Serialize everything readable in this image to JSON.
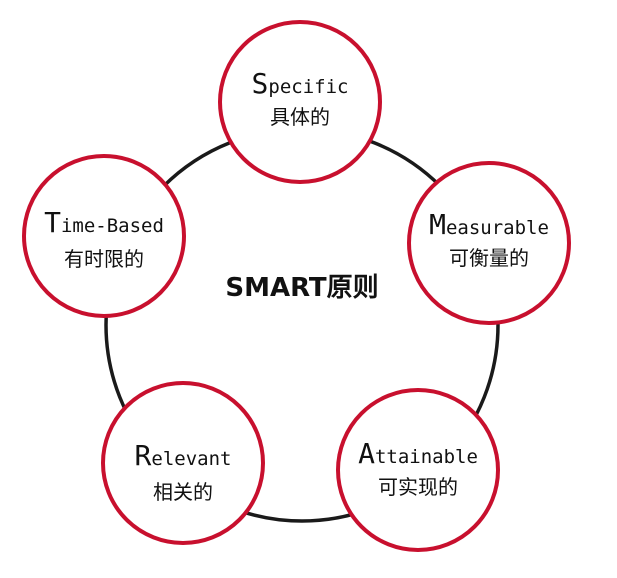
{
  "title": "SMART原则",
  "colors": {
    "ring": "#1a1a1a",
    "node_border": "#c8102e",
    "node_fill": "#ffffff",
    "text": "#111111"
  },
  "nodes": [
    {
      "initial": "S",
      "rest": "pecific",
      "cn": "具体的"
    },
    {
      "initial": "M",
      "rest": "easurable",
      "cn": "可衡量的"
    },
    {
      "initial": "A",
      "rest": "ttainable",
      "cn": "可实现的"
    },
    {
      "initial": "R",
      "rest": "elevant",
      "cn": "相关的"
    },
    {
      "initial": "T",
      "rest": "ime-Based",
      "cn": "有时限的"
    }
  ]
}
